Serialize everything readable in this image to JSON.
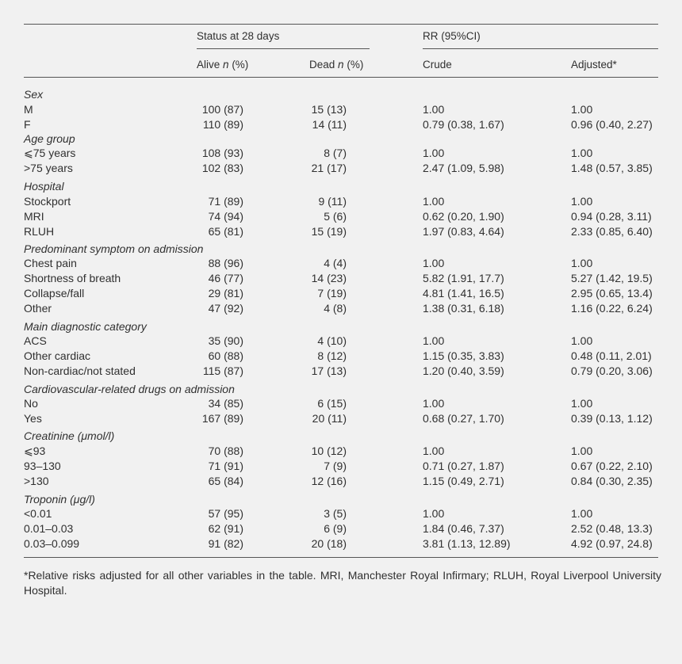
{
  "header": {
    "status_group": "Status at 28 days",
    "rr_group": "RR (95%CI)",
    "alive": "Alive",
    "dead": "Dead",
    "n_italic": "n",
    "percent": "(%)",
    "crude": "Crude",
    "adjusted": "Adjusted*"
  },
  "groups": [
    {
      "title": "Sex",
      "rows": [
        {
          "label": "M",
          "alive": "100 (87)",
          "dead": "15 (13)",
          "crude": "1.00",
          "adjusted": "1.00"
        },
        {
          "label": "F",
          "alive": "110 (89)",
          "dead": "14 (11)",
          "crude": "0.79 (0.38, 1.67)",
          "adjusted": "0.96 (0.40, 2.27)"
        }
      ]
    },
    {
      "title": "Age group",
      "rows": [
        {
          "label": "⩽75 years",
          "alive": "108 (93)",
          "dead": "8 (7)",
          "crude": "1.00",
          "adjusted": "1.00"
        },
        {
          "label": ">75 years",
          "alive": "102 (83)",
          "dead": "21 (17)",
          "crude": "2.47 (1.09, 5.98)",
          "adjusted": "1.48 (0.57, 3.85)"
        }
      ]
    },
    {
      "title": "Hospital",
      "rows": [
        {
          "label": "Stockport",
          "alive": "71 (89)",
          "dead": "9 (11)",
          "crude": "1.00",
          "adjusted": "1.00"
        },
        {
          "label": "MRI",
          "alive": "74 (94)",
          "dead": "5 (6)",
          "crude": "0.62 (0.20, 1.90)",
          "adjusted": "0.94 (0.28, 3.11)"
        },
        {
          "label": "RLUH",
          "alive": "65 (81)",
          "dead": "15 (19)",
          "crude": "1.97 (0.83, 4.64)",
          "adjusted": "2.33 (0.85, 6.40)"
        }
      ]
    },
    {
      "title": "Predominant symptom on admission",
      "rows": [
        {
          "label": "Chest pain",
          "alive": "88 (96)",
          "dead": "4 (4)",
          "crude": "1.00",
          "adjusted": "1.00"
        },
        {
          "label": "Shortness of breath",
          "alive": "46 (77)",
          "dead": "14 (23)",
          "crude": "5.82 (1.91, 17.7)",
          "adjusted": "5.27 (1.42, 19.5)"
        },
        {
          "label": "Collapse/fall",
          "alive": "29 (81)",
          "dead": "7 (19)",
          "crude": "4.81 (1.41, 16.5)",
          "adjusted": "2.95 (0.65, 13.4)"
        },
        {
          "label": "Other",
          "alive": "47 (92)",
          "dead": "4 (8)",
          "crude": "1.38 (0.31, 6.18)",
          "adjusted": "1.16 (0.22, 6.24)"
        }
      ]
    },
    {
      "title": "Main diagnostic category",
      "rows": [
        {
          "label": "ACS",
          "alive": "35 (90)",
          "dead": "4 (10)",
          "crude": "1.00",
          "adjusted": "1.00"
        },
        {
          "label": "Other cardiac",
          "alive": "60 (88)",
          "dead": "8 (12)",
          "crude": "1.15 (0.35, 3.83)",
          "adjusted": "0.48 (0.11, 2.01)"
        },
        {
          "label": "Non-cardiac/not stated",
          "alive": "115 (87)",
          "dead": "17 (13)",
          "crude": "1.20 (0.40, 3.59)",
          "adjusted": "0.79 (0.20, 3.06)"
        }
      ]
    },
    {
      "title": "Cardiovascular-related drugs on admission",
      "rows": [
        {
          "label": "No",
          "alive": "34 (85)",
          "dead": "6 (15)",
          "crude": "1.00",
          "adjusted": "1.00"
        },
        {
          "label": "Yes",
          "alive": "167 (89)",
          "dead": "20 (11)",
          "crude": "0.68 (0.27, 1.70)",
          "adjusted": "0.39 (0.13, 1.12)"
        }
      ]
    },
    {
      "title": "Creatinine (μmol/l)",
      "rows": [
        {
          "label": "⩽93",
          "alive": "70 (88)",
          "dead": "10 (12)",
          "crude": "1.00",
          "adjusted": "1.00"
        },
        {
          "label": "93–130",
          "alive": "71 (91)",
          "dead": "7 (9)",
          "crude": "0.71 (0.27, 1.87)",
          "adjusted": "0.67 (0.22, 2.10)"
        },
        {
          "label": ">130",
          "alive": "65 (84)",
          "dead": "12 (16)",
          "crude": "1.15 (0.49, 2.71)",
          "adjusted": "0.84 (0.30, 2.35)"
        }
      ]
    },
    {
      "title": "Troponin (μg/l)",
      "rows": [
        {
          "label": "<0.01",
          "alive": "57 (95)",
          "dead": "3 (5)",
          "crude": "1.00",
          "adjusted": "1.00"
        },
        {
          "label": "0.01–0.03",
          "alive": "62 (91)",
          "dead": "6 (9)",
          "crude": "1.84 (0.46, 7.37)",
          "adjusted": "2.52 (0.48, 13.3)"
        },
        {
          "label": "0.03–0.099",
          "alive": "91 (82)",
          "dead": "20 (18)",
          "crude": "3.81 (1.13, 12.89)",
          "adjusted": "4.92 (0.97, 24.8)"
        }
      ]
    }
  ],
  "footnote": "*Relative risks adjusted for all other variables in the table. MRI, Manchester Royal Infirmary; RLUH, Royal Liverpool University Hospital."
}
